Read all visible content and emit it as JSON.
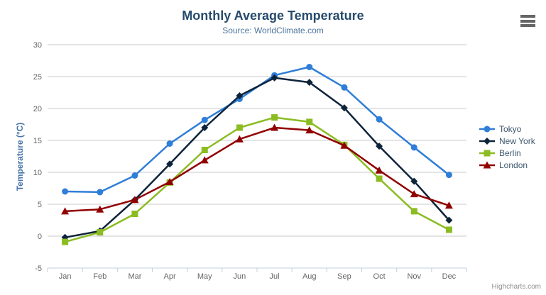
{
  "chart": {
    "credits": "Highcharts.com",
    "menu_icon": "hamburger-menu-icon",
    "background_color": "#ffffff",
    "title_color": "#274b6d",
    "subtitle_color": "#4d759e",
    "axis_label_color": "#666666",
    "gridline_color": "#c8c8c8",
    "axis_line_color": "#c0d0e0"
  },
  "chart_data": {
    "type": "line",
    "title": "Monthly Average Temperature",
    "subtitle": "Source: WorldClimate.com",
    "categories": [
      "Jan",
      "Feb",
      "Mar",
      "Apr",
      "May",
      "Jun",
      "Jul",
      "Aug",
      "Sep",
      "Oct",
      "Nov",
      "Dec"
    ],
    "series": [
      {
        "name": "Tokyo",
        "color": "#2f7ed8",
        "marker": "circle",
        "values": [
          7.0,
          6.9,
          9.5,
          14.5,
          18.2,
          21.5,
          25.2,
          26.5,
          23.3,
          18.3,
          13.9,
          9.6
        ]
      },
      {
        "name": "New York",
        "color": "#0d233a",
        "marker": "diamond",
        "values": [
          -0.2,
          0.8,
          5.7,
          11.3,
          17.0,
          22.0,
          24.8,
          24.1,
          20.1,
          14.1,
          8.6,
          2.5
        ]
      },
      {
        "name": "Berlin",
        "color": "#8bbc21",
        "marker": "square",
        "values": [
          -0.9,
          0.6,
          3.5,
          8.4,
          13.5,
          17.0,
          18.6,
          17.9,
          14.3,
          9.0,
          3.9,
          1.0
        ]
      },
      {
        "name": "London",
        "color": "#910000",
        "marker": "triangle",
        "values": [
          3.9,
          4.2,
          5.7,
          8.5,
          11.9,
          15.2,
          17.0,
          16.6,
          14.2,
          10.3,
          6.6,
          4.8
        ]
      }
    ],
    "xlabel": "",
    "ylabel": "Temperature (°C)",
    "ylim": [
      -5,
      30
    ],
    "ytick_interval": 5,
    "grid": true,
    "legend_position": "right"
  }
}
